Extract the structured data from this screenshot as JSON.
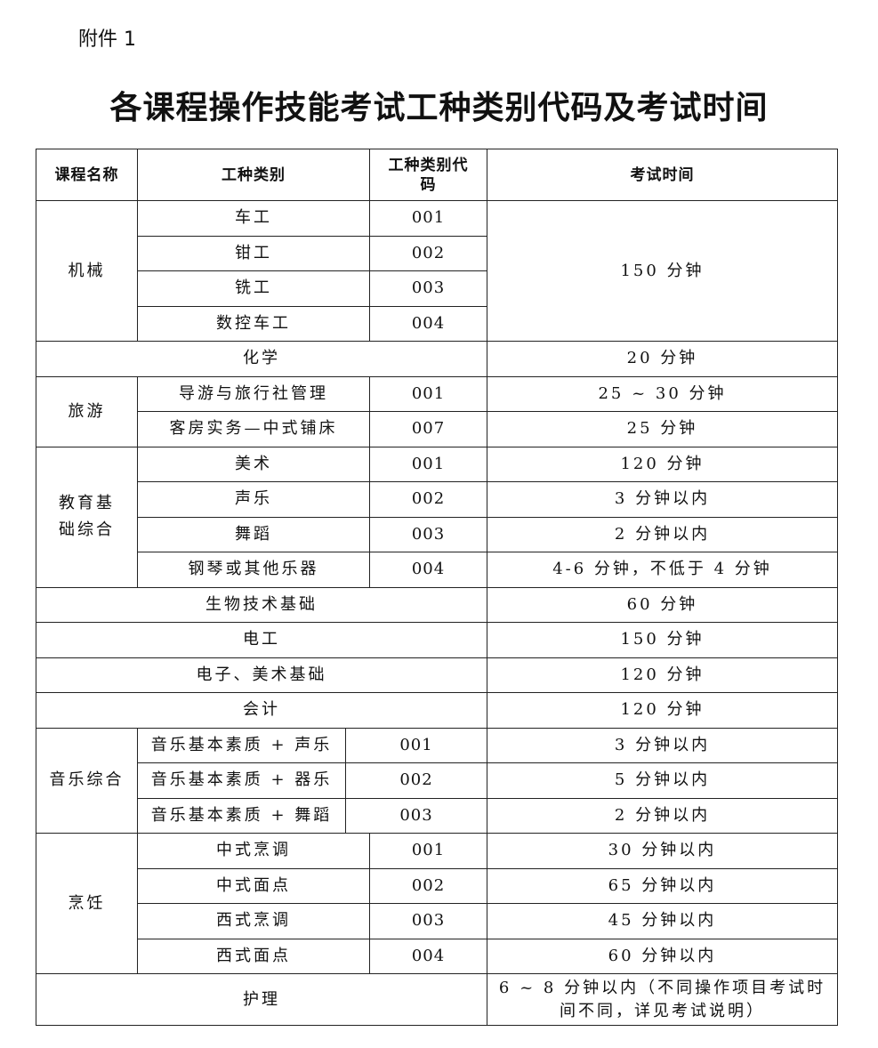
{
  "attachment_label": "附件 1",
  "title": "各课程操作技能考试工种类别代码及考试时间",
  "table": {
    "headers": {
      "course": "课程名称",
      "type": "工种类别",
      "code": "工种类别代码",
      "time": "考试时间"
    },
    "groups": [
      {
        "course": "机械",
        "time": "150 分钟",
        "items": [
          {
            "type": "车工",
            "code": "001"
          },
          {
            "type": "钳工",
            "code": "002"
          },
          {
            "type": "铣工",
            "code": "003"
          },
          {
            "type": "数控车工",
            "code": "004"
          }
        ]
      },
      {
        "course": "化学",
        "time": "20 分钟"
      },
      {
        "course": "旅游",
        "items": [
          {
            "type": "导游与旅行社管理",
            "code": "001",
            "time": "25 ~ 30 分钟"
          },
          {
            "type": "客房实务—中式铺床",
            "code": "007",
            "time": "25 分钟"
          }
        ]
      },
      {
        "course": "教育基础综合",
        "items": [
          {
            "type": "美术",
            "code": "001",
            "time": "120 分钟"
          },
          {
            "type": "声乐",
            "code": "002",
            "time": "3 分钟以内"
          },
          {
            "type": "舞蹈",
            "code": "003",
            "time": "2 分钟以内"
          },
          {
            "type": "钢琴或其他乐器",
            "code": "004",
            "time": "4-6 分钟，不低于 4 分钟"
          }
        ]
      },
      {
        "course": "生物技术基础",
        "time": "60 分钟"
      },
      {
        "course": "电工",
        "time": "150 分钟"
      },
      {
        "course": "电子、美术基础",
        "time": "120 分钟"
      },
      {
        "course": "会计",
        "time": "120 分钟"
      },
      {
        "course": "音乐综合",
        "narrow": true,
        "items": [
          {
            "type": "音乐基本素质 + 声乐",
            "code": "001",
            "time": "3 分钟以内"
          },
          {
            "type": "音乐基本素质 + 器乐",
            "code": "002",
            "time": "5 分钟以内"
          },
          {
            "type": "音乐基本素质 + 舞蹈",
            "code": "003",
            "time": "2 分钟以内"
          }
        ]
      },
      {
        "course": "烹饪",
        "items": [
          {
            "type": "中式烹调",
            "code": "001",
            "time": "30 分钟以内"
          },
          {
            "type": "中式面点",
            "code": "002",
            "time": "65 分钟以内"
          },
          {
            "type": "西式烹调",
            "code": "003",
            "time": "45 分钟以内"
          },
          {
            "type": "西式面点",
            "code": "004",
            "time": "60 分钟以内"
          }
        ]
      },
      {
        "course": "护理",
        "time": "6 ~ 8 分钟以内（不同操作项目考试时间不同，详见考试说明）",
        "tall": true
      }
    ]
  }
}
